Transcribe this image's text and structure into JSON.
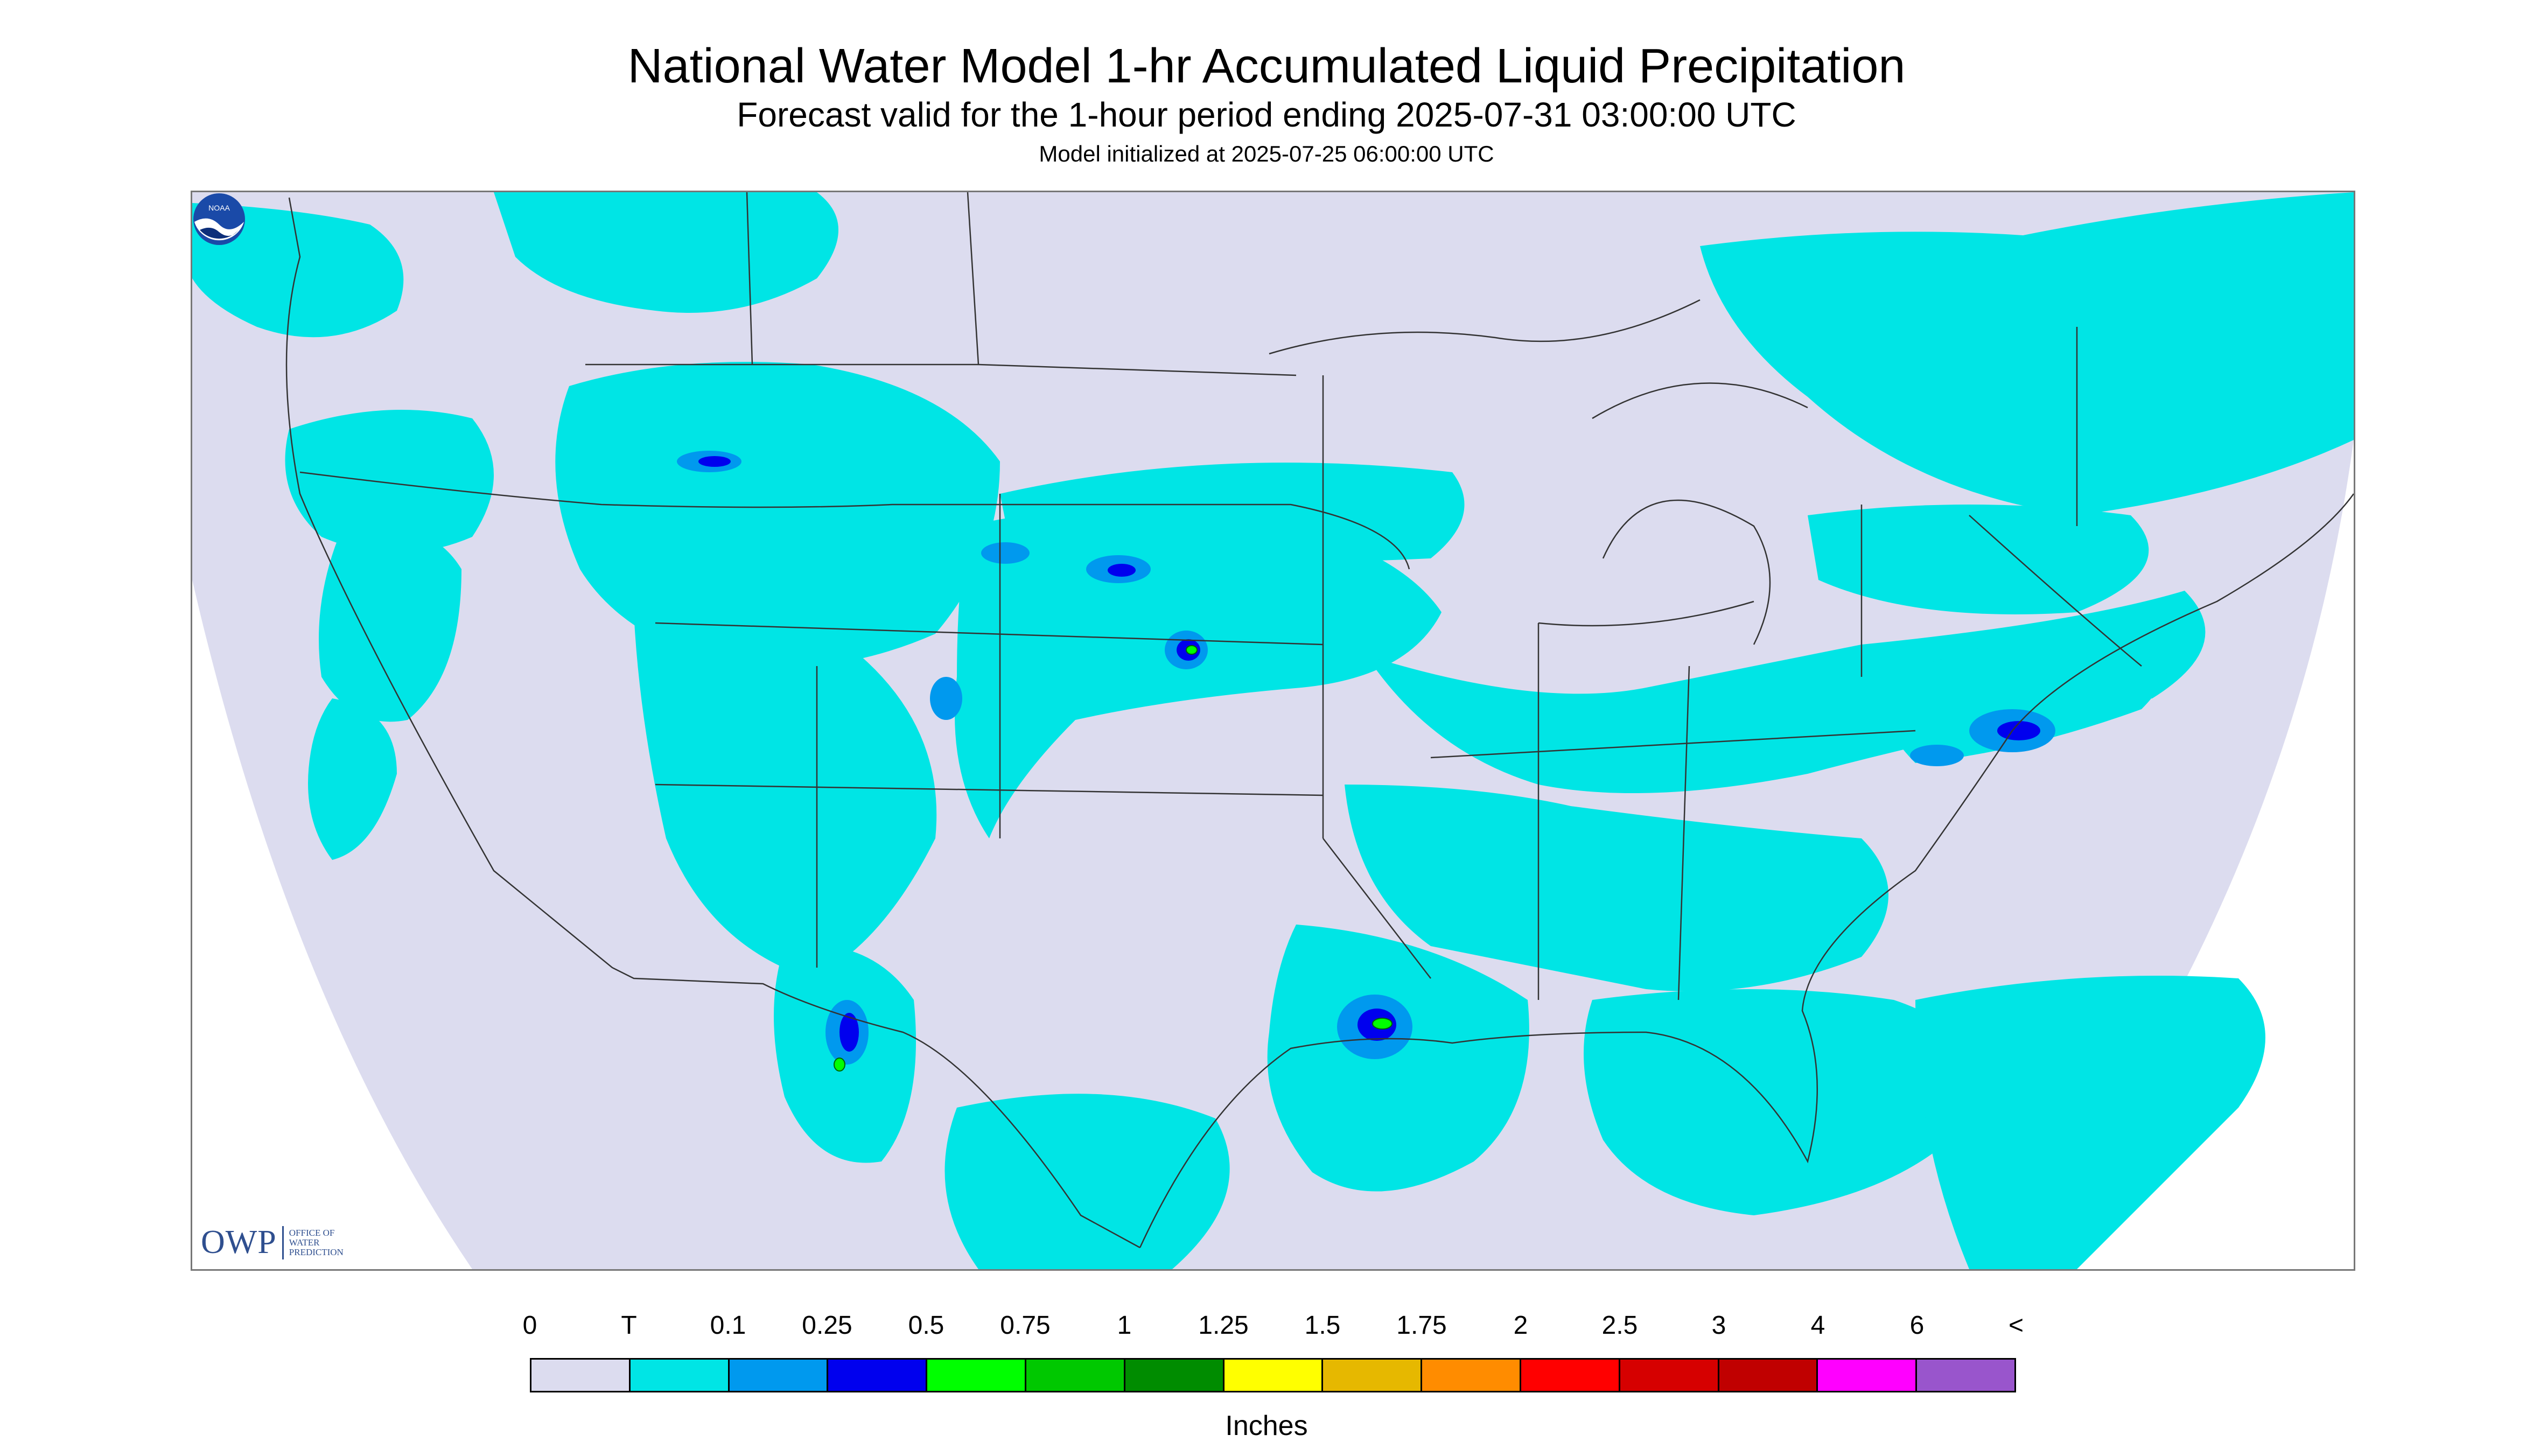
{
  "header": {
    "title": "National Water Model 1-hr Accumulated Liquid Precipitation",
    "subtitle": "Forecast valid for the 1-hour period ending 2025-07-31 03:00:00 UTC",
    "init": "Model initialized at 2025-07-25 06:00:00 UTC"
  },
  "map": {
    "region": "Continental United States",
    "background_color": "#dcdcef",
    "light_rain_color": "#00e5e5",
    "heavier_rain_color": "#0044ff",
    "border_color": "#333333"
  },
  "logos": {
    "owp": {
      "letters": "OWP",
      "text_lines": [
        "OFFICE OF",
        "WATER",
        "PREDICTION"
      ],
      "icon": "owp-logo"
    },
    "noaa": {
      "text": "NOAA",
      "icon": "noaa-logo"
    }
  },
  "legend": {
    "labels": [
      "0",
      "T",
      "0.1",
      "0.25",
      "0.5",
      "0.75",
      "1",
      "1.25",
      "1.5",
      "1.75",
      "2",
      "2.5",
      "3",
      "4",
      "6",
      "<"
    ],
    "colors": [
      "#dcdcef",
      "#00e5e5",
      "#0099ee",
      "#0000ee",
      "#00ff00",
      "#00c800",
      "#008c00",
      "#ffff00",
      "#e6b800",
      "#ff8c00",
      "#ff0000",
      "#d60000",
      "#c00000",
      "#ff00ff",
      "#9955cc"
    ],
    "units": "Inches"
  }
}
